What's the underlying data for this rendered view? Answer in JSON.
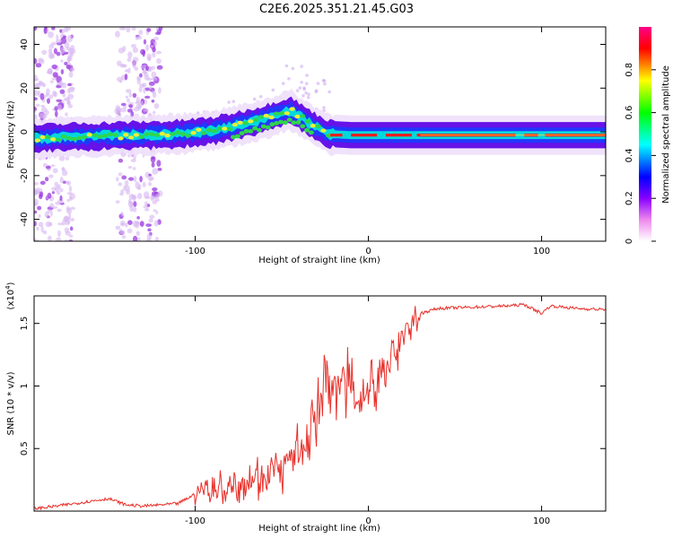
{
  "title": "C2E6.2025.351.21.45.G03",
  "chart_data": [
    {
      "type": "heatmap",
      "xlabel": "Height of straight line (km)",
      "ylabel": "Frequency (Hz)",
      "xlim": [
        -193,
        137
      ],
      "ylim": [
        -50,
        48
      ],
      "xticks": [
        -100,
        0,
        100
      ],
      "yticks": [
        -40,
        -20,
        0,
        20,
        40
      ],
      "colorbar": {
        "label": "Normalized spectral amplitude",
        "range": [
          0,
          1
        ],
        "ticks": [
          0.0,
          0.2,
          0.4,
          0.6,
          0.8
        ],
        "colors": [
          "#ffffff",
          "#ee88ee",
          "#8800ff",
          "#0000ff",
          "#00ffff",
          "#00ff00",
          "#ffff00",
          "#ff0000",
          "#ff0088"
        ]
      },
      "ridge": {
        "x": [
          -193,
          -160,
          -130,
          -110,
          -90,
          -75,
          -60,
          -45,
          -38,
          -30,
          -22,
          -10,
          0,
          20,
          50,
          80,
          100,
          120,
          137
        ],
        "y": [
          -3,
          -2,
          -1.5,
          -1,
          0.5,
          3,
          6,
          10,
          6,
          2,
          -1,
          -1.5,
          -1.5,
          -1.5,
          -1.5,
          -1.5,
          -1.5,
          -1.5,
          -1.5
        ]
      },
      "noise_bands_x": [
        [
          -193,
          -170
        ],
        [
          -145,
          -120
        ]
      ]
    },
    {
      "type": "line",
      "xlabel": "Height of straight line (km)",
      "ylabel": "SNR (10 * v/v)",
      "y_multiplier": "x10^4",
      "xlim": [
        -193,
        137
      ],
      "ylim": [
        0,
        1.72
      ],
      "xticks": [
        -100,
        0,
        100
      ],
      "yticks": [
        0.5,
        1.0,
        1.5
      ],
      "color": "#e8302a",
      "x": [
        -193,
        -180,
        -160,
        -150,
        -140,
        -130,
        -120,
        -110,
        -102,
        -96,
        -90,
        -80,
        -70,
        -60,
        -50,
        -40,
        -35,
        -30,
        -25,
        -20,
        -15,
        -10,
        -5,
        0,
        5,
        10,
        15,
        20,
        25,
        30,
        40,
        60,
        80,
        90,
        100,
        105,
        120,
        137
      ],
      "y": [
        0.02,
        0.04,
        0.08,
        0.1,
        0.05,
        0.04,
        0.05,
        0.06,
        0.12,
        0.18,
        0.15,
        0.22,
        0.25,
        0.3,
        0.35,
        0.45,
        0.6,
        0.75,
        0.95,
        1.05,
        1.0,
        0.95,
        0.92,
        0.95,
        1.05,
        1.15,
        1.28,
        1.38,
        1.48,
        1.58,
        1.62,
        1.63,
        1.64,
        1.65,
        1.58,
        1.64,
        1.62,
        1.61
      ]
    }
  ]
}
